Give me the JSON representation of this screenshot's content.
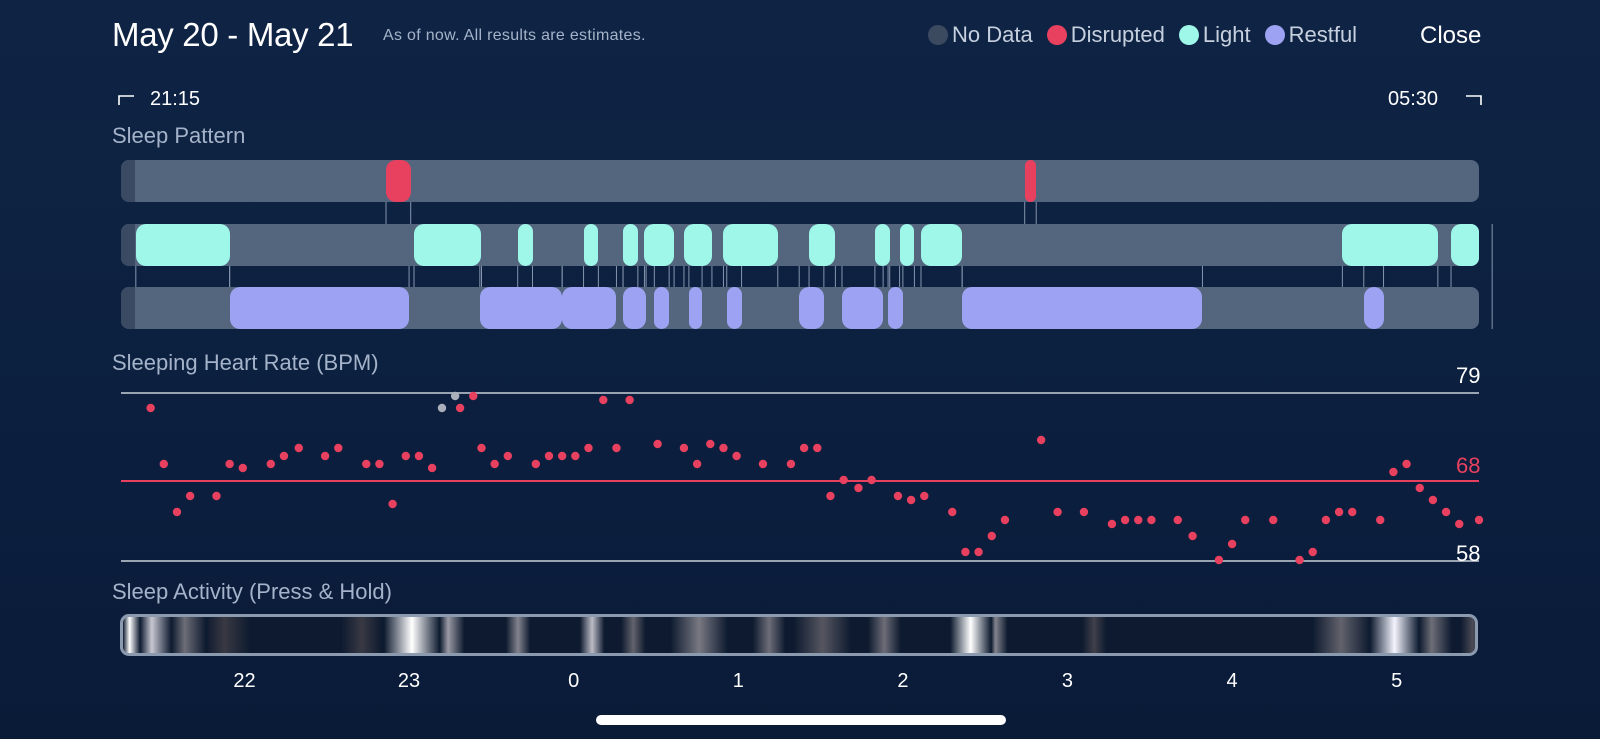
{
  "header": {
    "title": "May 20 - May 21",
    "subtitle": "As of now. All results are estimates.",
    "close_label": "Close"
  },
  "legend": [
    {
      "label": "No Data",
      "color": "#3c4a60"
    },
    {
      "label": "Disrupted",
      "color": "#e8405f"
    },
    {
      "label": "Light",
      "color": "#9ff7ea"
    },
    {
      "label": "Restful",
      "color": "#9da3f2"
    }
  ],
  "range": {
    "start_label": "21:15",
    "end_label": "05:30"
  },
  "sleep_pattern": {
    "label": "Sleep Pattern",
    "disrupted": [
      [
        22.86,
        23.01
      ],
      [
        26.74,
        26.81
      ]
    ],
    "light": [
      [
        21.34,
        21.91
      ],
      [
        23.03,
        23.44
      ],
      [
        23.66,
        23.75
      ],
      [
        24.06,
        24.15
      ],
      [
        24.3,
        24.39
      ],
      [
        24.43,
        24.61
      ],
      [
        24.67,
        24.84
      ],
      [
        24.91,
        25.24
      ],
      [
        25.43,
        25.59
      ],
      [
        25.83,
        25.92
      ],
      [
        25.98,
        26.07
      ],
      [
        26.11,
        26.36
      ],
      [
        28.67,
        29.25
      ],
      [
        29.33,
        29.58
      ]
    ],
    "restful": [
      [
        21.91,
        23.0
      ],
      [
        23.43,
        23.93
      ],
      [
        23.93,
        24.26
      ],
      [
        24.3,
        24.44
      ],
      [
        24.49,
        24.58
      ],
      [
        24.7,
        24.78
      ],
      [
        24.93,
        25.02
      ],
      [
        25.37,
        25.52
      ],
      [
        25.63,
        25.88
      ],
      [
        25.91,
        26.0
      ],
      [
        26.36,
        27.82
      ],
      [
        28.8,
        28.92
      ]
    ]
  },
  "heart_rate": {
    "label": "Sleeping Heart Rate (BPM)",
    "max_label": "79",
    "avg_label": "68",
    "min_label": "58",
    "max": 79,
    "avg": 68,
    "min": 58,
    "points": [
      [
        21.43,
        77
      ],
      [
        21.51,
        70
      ],
      [
        21.59,
        64
      ],
      [
        21.67,
        66
      ],
      [
        21.83,
        66
      ],
      [
        21.91,
        70
      ],
      [
        21.99,
        69.5
      ],
      [
        22.16,
        70
      ],
      [
        22.24,
        71
      ],
      [
        22.33,
        72
      ],
      [
        22.49,
        71
      ],
      [
        22.57,
        72
      ],
      [
        22.74,
        70
      ],
      [
        22.82,
        70
      ],
      [
        22.9,
        65
      ],
      [
        22.98,
        71
      ],
      [
        23.06,
        71
      ],
      [
        23.14,
        69.5
      ],
      [
        23.31,
        77
      ],
      [
        23.39,
        78.5
      ],
      [
        23.44,
        72
      ],
      [
        23.52,
        70
      ],
      [
        23.6,
        71
      ],
      [
        23.77,
        70
      ],
      [
        23.85,
        71
      ],
      [
        23.93,
        71
      ],
      [
        24.01,
        71
      ],
      [
        24.09,
        72
      ],
      [
        24.18,
        78
      ],
      [
        24.26,
        72
      ],
      [
        24.34,
        78
      ],
      [
        24.51,
        72.5
      ],
      [
        24.67,
        72
      ],
      [
        24.75,
        70
      ],
      [
        24.83,
        72.5
      ],
      [
        24.91,
        72
      ],
      [
        24.99,
        71
      ],
      [
        25.15,
        70
      ],
      [
        25.32,
        70
      ],
      [
        25.4,
        72
      ],
      [
        25.48,
        72
      ],
      [
        25.56,
        66
      ],
      [
        25.64,
        68
      ],
      [
        25.73,
        67
      ],
      [
        25.81,
        68
      ],
      [
        25.97,
        66
      ],
      [
        26.05,
        65.5
      ],
      [
        26.13,
        66
      ],
      [
        26.3,
        64
      ],
      [
        26.38,
        59
      ],
      [
        26.46,
        59
      ],
      [
        26.54,
        61
      ],
      [
        26.62,
        63
      ],
      [
        26.84,
        73
      ],
      [
        26.94,
        64
      ],
      [
        27.1,
        64
      ],
      [
        27.27,
        62.5
      ],
      [
        27.35,
        63
      ],
      [
        27.43,
        63
      ],
      [
        27.51,
        63
      ],
      [
        27.67,
        63
      ],
      [
        27.76,
        61
      ],
      [
        27.92,
        58
      ],
      [
        28.0,
        60
      ],
      [
        28.08,
        63
      ],
      [
        28.25,
        63
      ],
      [
        28.41,
        58
      ],
      [
        28.49,
        59
      ],
      [
        28.57,
        63
      ],
      [
        28.65,
        64
      ],
      [
        28.73,
        64
      ],
      [
        28.9,
        63
      ],
      [
        28.98,
        69
      ],
      [
        29.06,
        70
      ],
      [
        29.14,
        67
      ],
      [
        29.22,
        65.5
      ],
      [
        29.3,
        64
      ],
      [
        29.38,
        62.5
      ],
      [
        29.5,
        63
      ]
    ],
    "nodata_points": [
      [
        23.2,
        77
      ],
      [
        23.28,
        78.5
      ]
    ]
  },
  "activity": {
    "label": "Sleep Activity (Press & Hold)",
    "bands": [
      [
        21.25,
        21.33,
        1.0
      ],
      [
        21.33,
        21.52,
        0.75
      ],
      [
        21.52,
        21.73,
        0.35
      ],
      [
        21.73,
        22.0,
        0.12
      ],
      [
        22.6,
        22.8,
        0.12
      ],
      [
        22.86,
        23.15,
        1.0
      ],
      [
        23.15,
        23.3,
        0.55
      ],
      [
        23.6,
        23.7,
        0.45
      ],
      [
        24.05,
        24.15,
        0.7
      ],
      [
        24.3,
        24.4,
        0.3
      ],
      [
        24.6,
        24.9,
        0.4
      ],
      [
        25.1,
        25.25,
        0.35
      ],
      [
        25.35,
        25.65,
        0.25
      ],
      [
        25.8,
        25.95,
        0.35
      ],
      [
        26.3,
        26.5,
        1.0
      ],
      [
        26.5,
        26.6,
        0.45
      ],
      [
        27.1,
        27.2,
        0.15
      ],
      [
        28.5,
        28.8,
        0.3
      ],
      [
        28.85,
        29.1,
        0.95
      ],
      [
        29.1,
        29.3,
        0.35
      ],
      [
        29.4,
        29.5,
        0.2
      ]
    ]
  },
  "x_axis": {
    "ticks": [
      {
        "label": "22",
        "v": 22
      },
      {
        "label": "23",
        "v": 23
      },
      {
        "label": "0",
        "v": 24
      },
      {
        "label": "1",
        "v": 25
      },
      {
        "label": "2",
        "v": 26
      },
      {
        "label": "3",
        "v": 27
      },
      {
        "label": "4",
        "v": 28
      },
      {
        "label": "5",
        "v": 29
      }
    ]
  }
}
